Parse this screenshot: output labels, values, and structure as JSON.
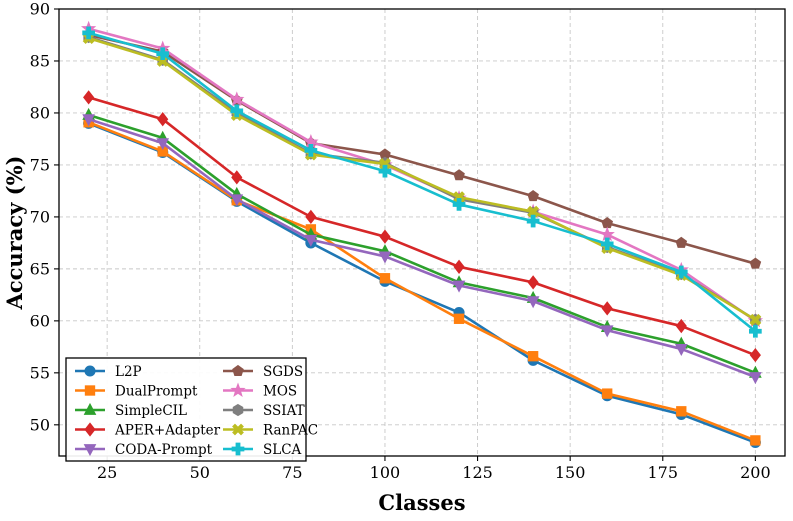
{
  "chart_data": {
    "type": "line",
    "title": "",
    "xlabel": "Classes",
    "ylabel": "Accuracy (%)",
    "xlim": [
      12,
      208
    ],
    "ylim": [
      47,
      90
    ],
    "xticks": [
      25,
      50,
      75,
      100,
      125,
      150,
      175,
      200
    ],
    "yticks": [
      50,
      55,
      60,
      65,
      70,
      75,
      80,
      85,
      90
    ],
    "grid": true,
    "legend_position": "lower-left",
    "x": [
      20,
      40,
      60,
      80,
      100,
      120,
      140,
      160,
      180,
      200
    ],
    "series": [
      {
        "name": "L2P",
        "color": "#1f77b4",
        "marker": "circle",
        "values": [
          79.0,
          76.2,
          71.5,
          67.5,
          63.8,
          60.8,
          56.2,
          52.8,
          51.0,
          48.3
        ]
      },
      {
        "name": "DualPrompt",
        "color": "#ff7f0e",
        "marker": "square",
        "values": [
          79.1,
          76.3,
          71.6,
          68.8,
          64.1,
          60.2,
          56.6,
          53.0,
          51.3,
          48.5
        ]
      },
      {
        "name": "SimpleCIL",
        "color": "#2ca02c",
        "marker": "triangle-up",
        "values": [
          79.8,
          77.6,
          72.2,
          68.3,
          66.7,
          63.7,
          62.2,
          59.4,
          57.8,
          55.0
        ]
      },
      {
        "name": "APER+Adapter",
        "color": "#d62728",
        "marker": "diamond",
        "values": [
          81.5,
          79.4,
          73.8,
          70.0,
          68.1,
          65.2,
          63.7,
          61.2,
          59.5,
          56.7
        ]
      },
      {
        "name": "CODA-Prompt",
        "color": "#9467bd",
        "marker": "triangle-down",
        "values": [
          79.4,
          77.1,
          71.7,
          67.8,
          66.2,
          63.4,
          61.9,
          59.1,
          57.3,
          54.6
        ]
      },
      {
        "name": "SGDS",
        "color": "#8c564b",
        "marker": "pentagon",
        "values": [
          87.5,
          85.9,
          81.2,
          77.1,
          76.0,
          74.0,
          72.0,
          69.4,
          67.5,
          65.5
        ]
      },
      {
        "name": "MOS",
        "color": "#e377c2",
        "marker": "star",
        "values": [
          88.1,
          86.2,
          81.3,
          77.2,
          75.0,
          71.8,
          70.5,
          68.3,
          64.9,
          60.0
        ]
      },
      {
        "name": "SSIAT",
        "color": "#7f7f7f",
        "marker": "hexagon",
        "values": [
          87.3,
          85.1,
          80.0,
          76.1,
          75.2,
          71.7,
          70.4,
          67.1,
          64.5,
          60.1
        ]
      },
      {
        "name": "RanPAC",
        "color": "#bcbd22",
        "marker": "x",
        "values": [
          87.2,
          85.0,
          79.8,
          76.0,
          75.1,
          71.9,
          70.5,
          67.0,
          64.4,
          60.1
        ]
      },
      {
        "name": "SLCA",
        "color": "#17becf",
        "marker": "plus",
        "values": [
          87.7,
          85.7,
          80.2,
          76.4,
          74.4,
          71.2,
          69.6,
          67.4,
          64.7,
          59.0
        ]
      }
    ]
  }
}
